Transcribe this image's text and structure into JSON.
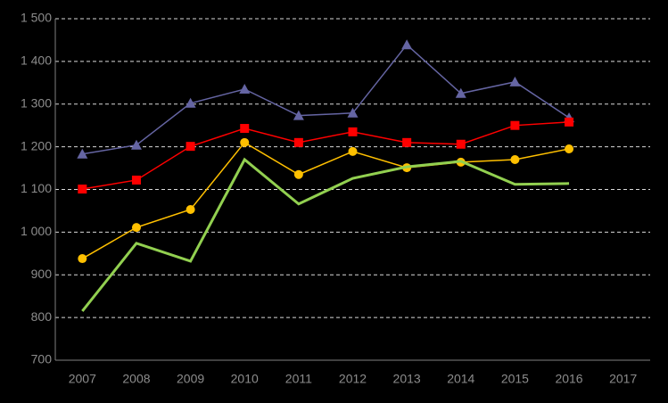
{
  "chart_data": {
    "type": "line",
    "categories": [
      "2007",
      "2008",
      "2009",
      "2010",
      "2011",
      "2012",
      "2013",
      "2014",
      "2015",
      "2016",
      "2017"
    ],
    "series": [
      {
        "color": "#6565a3",
        "marker": "triangle",
        "values": [
          1183,
          1204,
          1302,
          1335,
          1273,
          1279,
          1439,
          1325,
          1352,
          1268,
          null
        ]
      },
      {
        "color": "#ff0000",
        "marker": "square",
        "values": [
          1101,
          1122,
          1201,
          1243,
          1210,
          1235,
          1210,
          1206,
          1250,
          1258,
          null
        ]
      },
      {
        "color": "#ffc000",
        "marker": "circle",
        "values": [
          938,
          1011,
          1053,
          1210,
          1135,
          1189,
          1151,
          1164,
          1170,
          1195,
          null
        ]
      },
      {
        "color": "#92d050",
        "marker": "none",
        "values": [
          815,
          974,
          932,
          1170,
          1066,
          1126,
          1153,
          1166,
          1112,
          1114,
          null
        ]
      }
    ],
    "ylim": [
      700,
      1500
    ],
    "yticks": [
      700,
      800,
      900,
      {
        "value": 1000,
        "label": "1 000"
      },
      {
        "value": 1100,
        "label": "1 100"
      },
      {
        "value": 1200,
        "label": "1 200"
      },
      {
        "value": 1300,
        "label": "1 300"
      },
      {
        "value": 1400,
        "label": "1 400"
      },
      {
        "value": 1500,
        "label": "1 500"
      }
    ],
    "grid": true
  }
}
